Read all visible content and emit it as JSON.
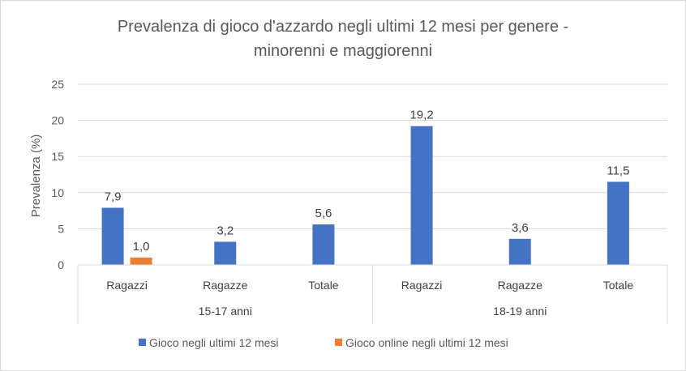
{
  "chart_data": {
    "type": "bar",
    "title_line1": "Prevalenza di gioco d'azzardo negli ultimi 12 mesi per genere -",
    "title_line2": "minorenni e maggiorenni",
    "ylabel": "Prevalenza (%)",
    "xlabel": "",
    "ylim": [
      0,
      25
    ],
    "yticks": [
      "0",
      "5",
      "10",
      "15",
      "20",
      "25"
    ],
    "grid": true,
    "legend_position": "bottom",
    "groups": [
      {
        "label": "15-17 anni",
        "categories": [
          "Ragazzi",
          "Ragazze",
          "Totale"
        ]
      },
      {
        "label": "18-19 anni",
        "categories": [
          "Ragazzi",
          "Ragazze",
          "Totale"
        ]
      }
    ],
    "series": [
      {
        "name": "Gioco negli ultimi 12 mesi",
        "color": "#4472c4",
        "values": [
          7.9,
          3.2,
          5.6,
          19.2,
          3.6,
          11.5
        ],
        "labels": [
          "7,9",
          "3,2",
          "5,6",
          "19,2",
          "3,6",
          "11,5"
        ]
      },
      {
        "name": "Gioco online negli ultimi 12 mesi",
        "color": "#ed7d31",
        "values": [
          1.0,
          null,
          null,
          null,
          null,
          null
        ],
        "labels": [
          "1,0",
          null,
          null,
          null,
          null,
          null
        ]
      }
    ]
  }
}
